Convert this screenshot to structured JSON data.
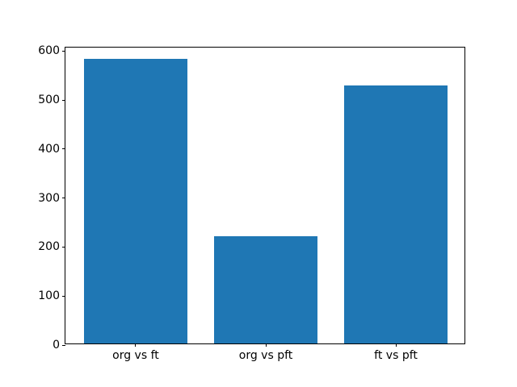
{
  "chart_data": {
    "type": "bar",
    "title": "",
    "xlabel": "",
    "ylabel": "",
    "categories": [
      "org vs ft",
      "org vs pft",
      "ft vs pft"
    ],
    "values": [
      580,
      219,
      526
    ],
    "ylim": [
      0,
      607
    ],
    "yticks": [
      0,
      100,
      200,
      300,
      400,
      500,
      600
    ],
    "grid": false,
    "legend_position": "none",
    "bar_color": "#1f77b4",
    "spine_color": "#000000",
    "text_color": "#000000",
    "background_color": "#ffffff"
  }
}
